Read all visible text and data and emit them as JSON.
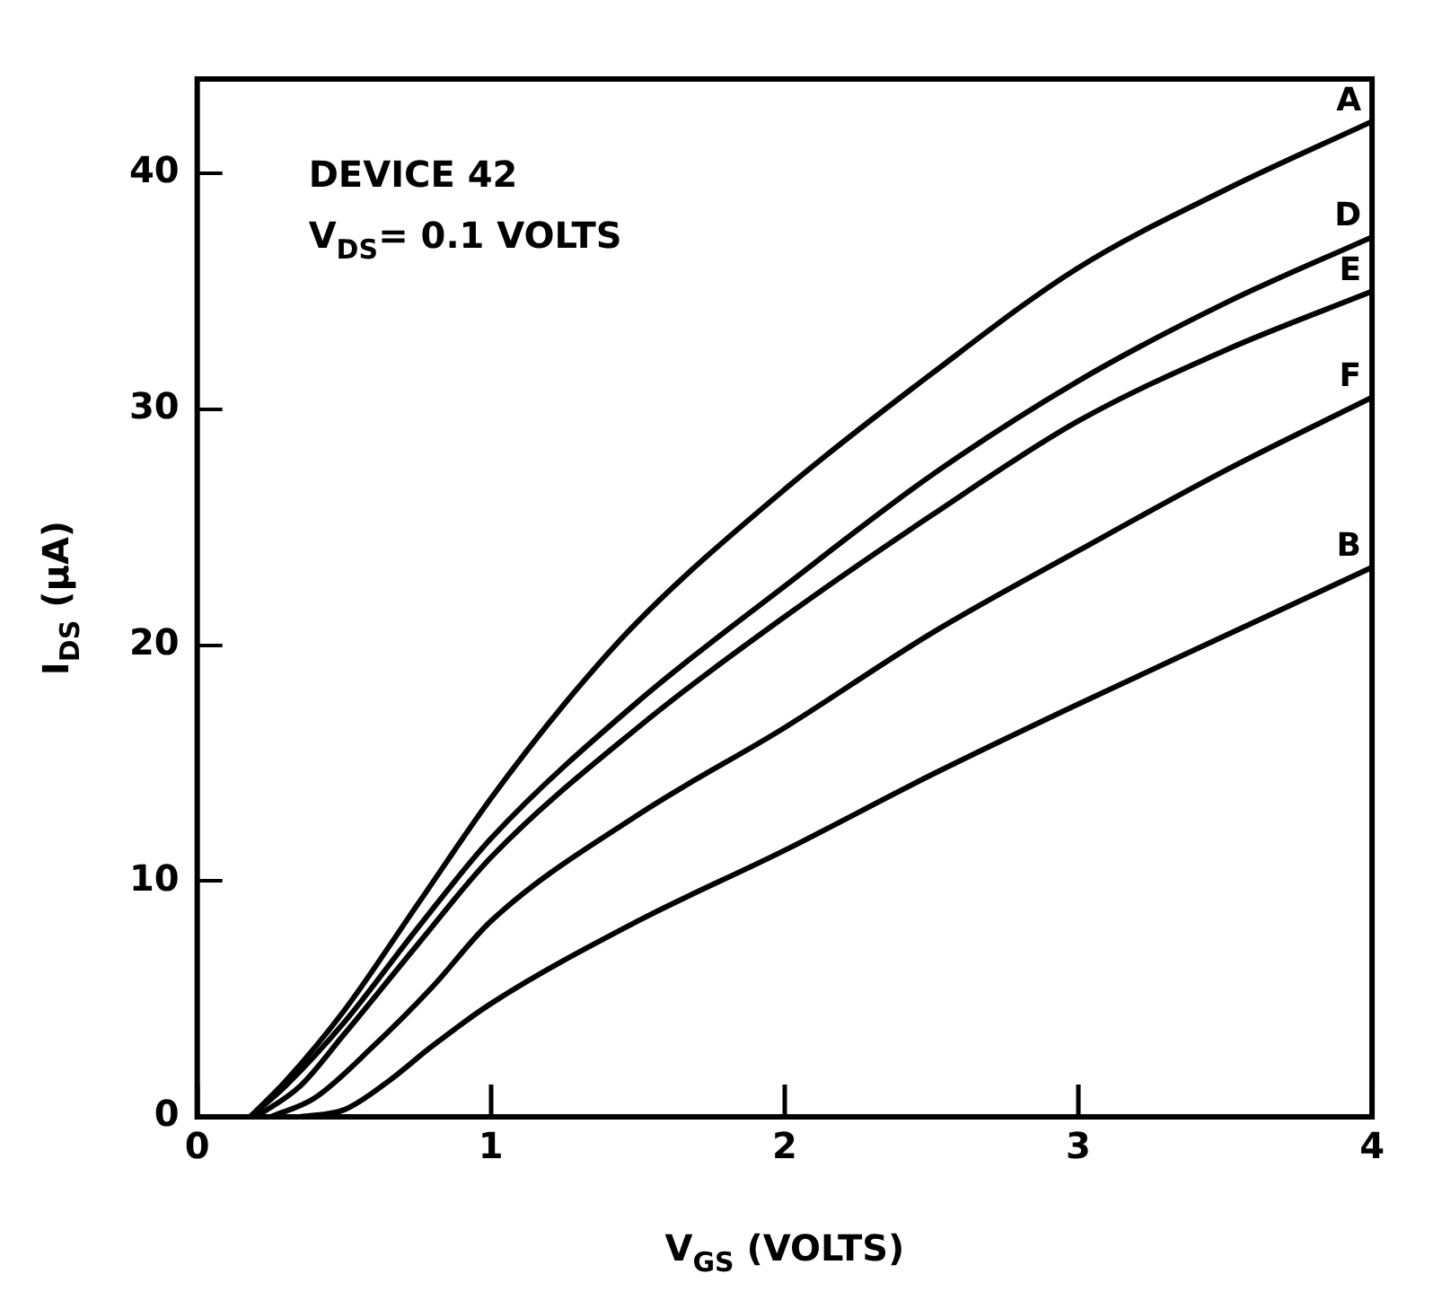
{
  "chart_data": {
    "type": "line",
    "xlabel": "V$_{GS}$ (VOLTS)",
    "ylabel": "I$_{DS}$ (μA)",
    "annotations": [
      "DEVICE 42",
      "V$_{DS}$= 0.1 VOLTS"
    ],
    "xlim": [
      0,
      4
    ],
    "xticks": [
      0,
      1,
      2,
      3,
      4
    ],
    "ylim": [
      0,
      44
    ],
    "yticks": [
      0,
      10,
      20,
      30,
      40
    ],
    "grid": false,
    "legend": false,
    "marker": "none",
    "line_style": "solid",
    "series": [
      {
        "name": "A",
        "color": "#000000",
        "x": [
          0.18,
          0.3,
          0.5,
          0.75,
          1,
          1.25,
          1.5,
          2,
          2.5,
          3,
          3.5,
          4
        ],
        "values": [
          0,
          1.5,
          4.5,
          9,
          13.5,
          17.5,
          21,
          26.6,
          31.5,
          36,
          39.3,
          42.2
        ]
      },
      {
        "name": "D",
        "color": "#000000",
        "x": [
          0.18,
          0.3,
          0.5,
          0.75,
          1,
          1.5,
          2,
          2.5,
          3,
          3.5,
          4
        ],
        "values": [
          0,
          1.3,
          4,
          8,
          11.8,
          17.6,
          22.5,
          27.2,
          31.2,
          34.5,
          37.3
        ]
      },
      {
        "name": "E",
        "color": "#000000",
        "x": [
          0.2,
          0.35,
          0.5,
          0.75,
          1,
          1.5,
          2,
          2.5,
          3,
          3.5,
          4
        ],
        "values": [
          0,
          1.3,
          3.5,
          7.3,
          11,
          16.5,
          21.2,
          25.5,
          29.5,
          32.5,
          35
        ]
      },
      {
        "name": "F",
        "color": "#000000",
        "x": [
          0.25,
          0.4,
          0.6,
          0.8,
          1,
          1.5,
          2,
          2.5,
          3,
          3.5,
          4
        ],
        "values": [
          0,
          0.8,
          3,
          5.5,
          8.3,
          12.8,
          16.5,
          20.5,
          24,
          27.4,
          30.5
        ]
      },
      {
        "name": "B",
        "color": "#000000",
        "x": [
          0.35,
          0.5,
          0.65,
          0.8,
          1,
          1.5,
          2,
          2.5,
          3,
          3.5,
          4
        ],
        "values": [
          0,
          0.3,
          1.5,
          3,
          4.8,
          8.3,
          11.3,
          14.5,
          17.5,
          20.4,
          23.3
        ]
      }
    ]
  }
}
